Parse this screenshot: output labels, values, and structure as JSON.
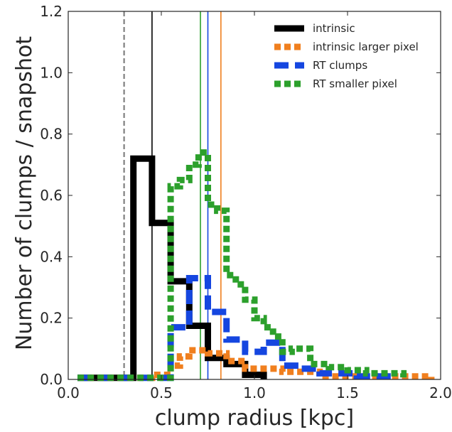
{
  "chart_data": {
    "type": "line",
    "title": "",
    "xlabel": "clump radius [kpc]",
    "ylabel": "Number of clumps / snapshot",
    "xlim": [
      0.0,
      2.0
    ],
    "ylim": [
      0.0,
      1.2
    ],
    "xticks": [
      "0.0",
      "0.5",
      "1.0",
      "1.5",
      "2.0"
    ],
    "yticks": [
      "0.0",
      "0.2",
      "0.4",
      "0.6",
      "0.8",
      "1.0",
      "1.2"
    ],
    "grid": false,
    "legend_position": "top-right",
    "series": [
      {
        "name": "intrinsic",
        "style": "step-solid-thick",
        "color": "#000000",
        "x": [
          0.05,
          0.35,
          0.35,
          0.45,
          0.45,
          0.55,
          0.55,
          0.65,
          0.65,
          0.75,
          0.75,
          0.85,
          0.85,
          0.95,
          0.95,
          1.05,
          1.05
        ],
        "y": [
          0.005,
          0.005,
          0.72,
          0.72,
          0.51,
          0.51,
          0.32,
          0.32,
          0.175,
          0.175,
          0.07,
          0.07,
          0.05,
          0.05,
          0.015,
          0.015,
          0.0
        ]
      },
      {
        "name": "intrinsic larger pixel",
        "style": "step-dotted-thick",
        "color": "#f07f1e",
        "x": [
          0.05,
          0.45,
          0.45,
          0.55,
          0.55,
          0.6,
          0.6,
          0.65,
          0.65,
          0.75,
          0.75,
          0.85,
          0.85,
          0.95,
          0.95,
          1.15,
          1.15,
          1.35,
          1.35,
          1.95,
          1.95
        ],
        "y": [
          0.005,
          0.005,
          0.015,
          0.015,
          0.045,
          0.045,
          0.075,
          0.075,
          0.095,
          0.095,
          0.085,
          0.085,
          0.06,
          0.06,
          0.035,
          0.035,
          0.025,
          0.025,
          0.01,
          0.01,
          0.0
        ]
      },
      {
        "name": "RT clumps",
        "style": "step-dashed-thick",
        "color": "#1546e0",
        "x": [
          0.05,
          0.55,
          0.55,
          0.65,
          0.65,
          0.75,
          0.75,
          0.85,
          0.85,
          0.95,
          0.95,
          1.05,
          1.05,
          1.15,
          1.15,
          1.25,
          1.25,
          1.35,
          1.35,
          1.55,
          1.55,
          1.75,
          1.75
        ],
        "y": [
          0.005,
          0.005,
          0.17,
          0.17,
          0.33,
          0.33,
          0.22,
          0.22,
          0.13,
          0.13,
          0.09,
          0.09,
          0.12,
          0.12,
          0.045,
          0.045,
          0.035,
          0.035,
          0.02,
          0.02,
          0.01,
          0.01,
          0.0
        ]
      },
      {
        "name": "RT smaller pixel",
        "style": "step-dotted-thick",
        "color": "#2ca02c",
        "x": [
          0.05,
          0.55,
          0.55,
          0.6,
          0.6,
          0.65,
          0.65,
          0.7,
          0.7,
          0.75,
          0.75,
          0.8,
          0.8,
          0.85,
          0.85,
          0.9,
          0.9,
          0.95,
          0.95,
          1.0,
          1.0,
          1.05,
          1.05,
          1.1,
          1.1,
          1.15,
          1.15,
          1.2,
          1.2,
          1.3,
          1.3,
          1.4,
          1.4,
          1.5,
          1.5,
          1.6,
          1.6,
          1.8,
          1.8
        ],
        "y": [
          0.005,
          0.005,
          0.63,
          0.63,
          0.65,
          0.65,
          0.7,
          0.7,
          0.74,
          0.74,
          0.57,
          0.57,
          0.55,
          0.55,
          0.34,
          0.34,
          0.31,
          0.31,
          0.26,
          0.26,
          0.2,
          0.2,
          0.17,
          0.17,
          0.14,
          0.14,
          0.09,
          0.09,
          0.1,
          0.1,
          0.05,
          0.05,
          0.04,
          0.04,
          0.03,
          0.03,
          0.02,
          0.02,
          0.0
        ]
      }
    ],
    "vertical_lines": [
      {
        "x": 0.3,
        "color": "#808080",
        "style": "dashed"
      },
      {
        "x": 0.45,
        "color": "#000000",
        "style": "solid"
      },
      {
        "x": 0.71,
        "color": "#2ca02c",
        "style": "solid"
      },
      {
        "x": 0.75,
        "color": "#1546e0",
        "style": "solid"
      },
      {
        "x": 0.82,
        "color": "#f07f1e",
        "style": "solid"
      }
    ]
  }
}
